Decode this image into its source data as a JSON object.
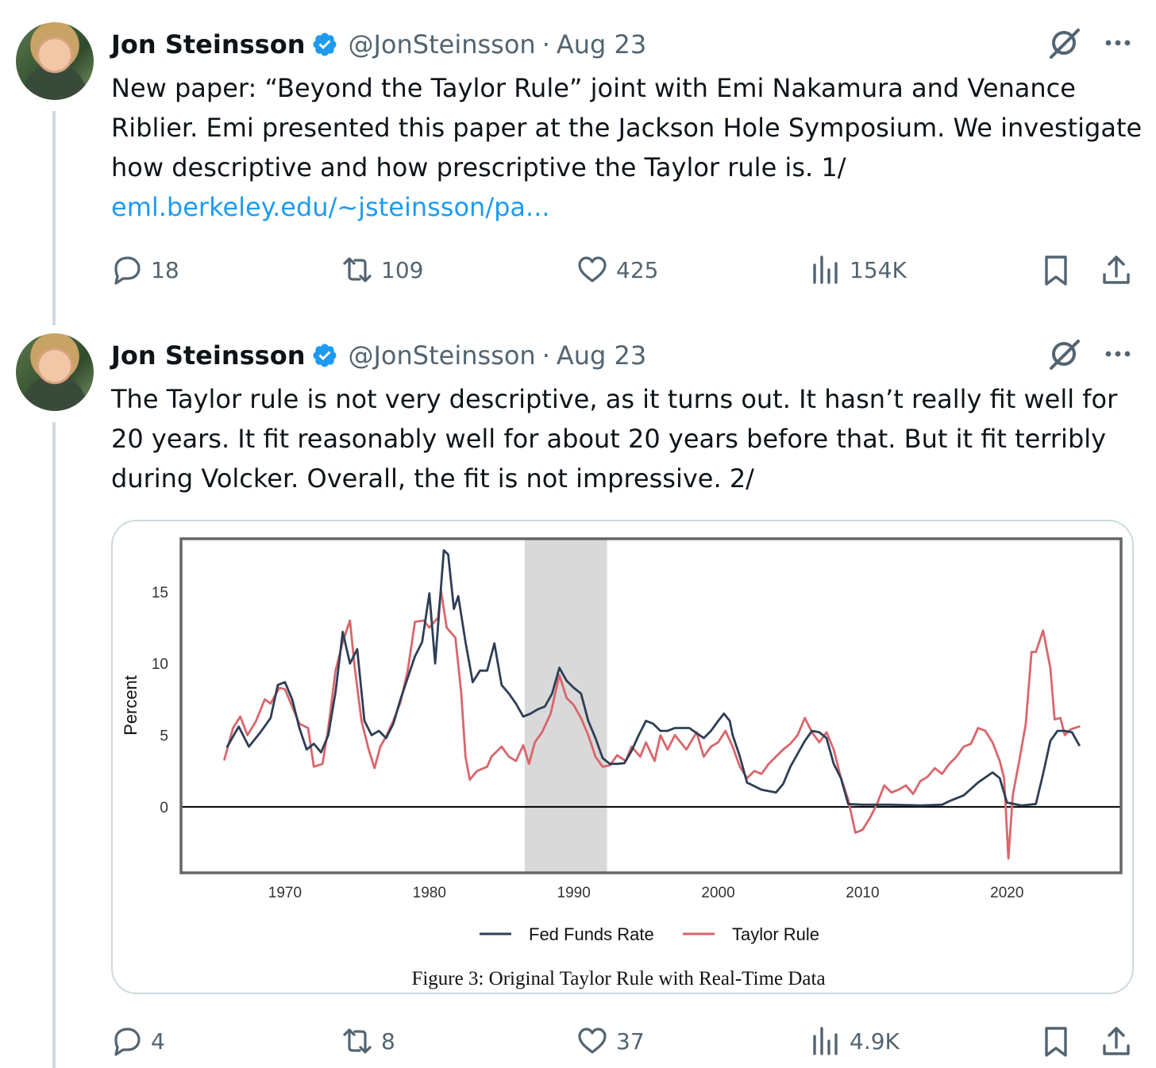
{
  "tweets": [
    {
      "author": "Jon Steinsson",
      "handle": "@JonSteinsson",
      "separator": "·",
      "date": "Aug 23",
      "text": "New paper: “Beyond the Taylor Rule” joint with Emi Nakamura and Venance Riblier. Emi presented this paper at the Jackson Hole Symposium. We investigate how descriptive and how prescriptive the Taylor rule is. 1/",
      "link": "eml.berkeley.edu/~jsteinsson/pa...",
      "replies": "18",
      "reposts": "109",
      "likes": "425",
      "views": "154K"
    },
    {
      "author": "Jon Steinsson",
      "handle": "@JonSteinsson",
      "separator": "·",
      "date": "Aug 23",
      "text": "The Taylor rule is not very descriptive, as it turns out. It hasn’t really fit well for 20 years. It fit reasonably well for about 20 years before that. But it fit terribly during Volcker. Overall, the fit is not impressive. 2/",
      "replies": "4",
      "reposts": "8",
      "likes": "37",
      "views": "4.9K"
    }
  ],
  "colors": {
    "verified": "#1d9bf0",
    "link": "#1d9bf0",
    "muted": "#536471",
    "fed_series": "#2e3e56",
    "taylor_series": "#d9666c",
    "shade": "#d9d9d9"
  },
  "icons": [
    "verified-badge-icon",
    "grok-icon",
    "more-icon",
    "reply-icon",
    "repost-icon",
    "like-icon",
    "views-icon",
    "bookmark-icon",
    "share-icon"
  ],
  "chart_data": {
    "type": "line",
    "title": "",
    "caption": "Figure 3: Original Taylor Rule with Real-Time Data",
    "xlabel": "",
    "ylabel": "Percent",
    "xlim": [
      1962.8,
      2027.9
    ],
    "ylim": [
      -4.6,
      18.7
    ],
    "xticks": [
      "1970",
      "1980",
      "1990",
      "2000",
      "2010",
      "2020"
    ],
    "yticks": [
      "0",
      "5",
      "10",
      "15"
    ],
    "grid": false,
    "zero_line": true,
    "shaded_region": [
      1986.6,
      1992.3
    ],
    "legend_position": "bottom-center",
    "series": [
      {
        "name": "Fed Funds Rate",
        "color": "#2e3e56",
        "points": [
          [
            1966,
            4.2
          ],
          [
            1966.8,
            5.6
          ],
          [
            1967.5,
            4.2
          ],
          [
            1968.3,
            5.2
          ],
          [
            1969,
            6.2
          ],
          [
            1969.5,
            8.5
          ],
          [
            1970,
            8.7
          ],
          [
            1970.5,
            7.5
          ],
          [
            1971,
            5.5
          ],
          [
            1971.5,
            4.0
          ],
          [
            1972,
            4.4
          ],
          [
            1972.5,
            3.8
          ],
          [
            1973,
            5.0
          ],
          [
            1973.5,
            8.0
          ],
          [
            1974,
            12.2
          ],
          [
            1974.5,
            10.0
          ],
          [
            1975,
            11.0
          ],
          [
            1975.5,
            6.0
          ],
          [
            1976,
            5.0
          ],
          [
            1976.5,
            5.3
          ],
          [
            1977,
            4.8
          ],
          [
            1977.5,
            5.8
          ],
          [
            1978,
            7.5
          ],
          [
            1978.5,
            9.0
          ],
          [
            1979,
            10.5
          ],
          [
            1979.5,
            11.5
          ],
          [
            1980,
            14.9
          ],
          [
            1980.4,
            10.0
          ],
          [
            1980.7,
            14.0
          ],
          [
            1981,
            17.9
          ],
          [
            1981.3,
            17.6
          ],
          [
            1981.7,
            13.8
          ],
          [
            1982,
            14.7
          ],
          [
            1982.5,
            11.5
          ],
          [
            1983,
            8.7
          ],
          [
            1983.5,
            9.5
          ],
          [
            1984,
            9.5
          ],
          [
            1984.5,
            11.4
          ],
          [
            1985,
            8.5
          ],
          [
            1985.5,
            7.9
          ],
          [
            1986,
            7.2
          ],
          [
            1986.5,
            6.3
          ],
          [
            1987,
            6.5
          ],
          [
            1987.5,
            6.8
          ],
          [
            1988,
            7.0
          ],
          [
            1988.5,
            7.9
          ],
          [
            1989,
            9.7
          ],
          [
            1989.5,
            8.8
          ],
          [
            1990,
            8.3
          ],
          [
            1990.5,
            7.9
          ],
          [
            1991,
            6.0
          ],
          [
            1991.5,
            4.8
          ],
          [
            1992,
            3.4
          ],
          [
            1992.5,
            3.0
          ],
          [
            1993,
            3.0
          ],
          [
            1993.5,
            3.05
          ],
          [
            1994,
            3.9
          ],
          [
            1994.5,
            5.0
          ],
          [
            1995,
            6.0
          ],
          [
            1995.5,
            5.8
          ],
          [
            1996,
            5.3
          ],
          [
            1996.5,
            5.3
          ],
          [
            1997,
            5.5
          ],
          [
            1998,
            5.5
          ],
          [
            1999,
            4.8
          ],
          [
            1999.5,
            5.3
          ],
          [
            2000,
            6.0
          ],
          [
            2000.4,
            6.5
          ],
          [
            2000.8,
            6.0
          ],
          [
            2001,
            5.0
          ],
          [
            2001.5,
            3.5
          ],
          [
            2002,
            1.7
          ],
          [
            2003,
            1.2
          ],
          [
            2004,
            1.0
          ],
          [
            2004.5,
            1.6
          ],
          [
            2005,
            2.8
          ],
          [
            2005.5,
            3.7
          ],
          [
            2006,
            4.6
          ],
          [
            2006.5,
            5.3
          ],
          [
            2007,
            5.2
          ],
          [
            2007.5,
            4.8
          ],
          [
            2008,
            3.0
          ],
          [
            2008.5,
            2.0
          ],
          [
            2009,
            0.2
          ],
          [
            2010,
            0.15
          ],
          [
            2012,
            0.15
          ],
          [
            2014,
            0.1
          ],
          [
            2015.5,
            0.15
          ],
          [
            2016,
            0.4
          ],
          [
            2017,
            0.8
          ],
          [
            2018,
            1.7
          ],
          [
            2019,
            2.4
          ],
          [
            2019.5,
            2.0
          ],
          [
            2020,
            0.3
          ],
          [
            2021,
            0.1
          ],
          [
            2022,
            0.2
          ],
          [
            2022.5,
            2.3
          ],
          [
            2023,
            4.6
          ],
          [
            2023.5,
            5.3
          ],
          [
            2024,
            5.3
          ],
          [
            2024.5,
            5.2
          ],
          [
            2025,
            4.3
          ]
        ]
      },
      {
        "name": "Taylor Rule",
        "color": "#d9666c",
        "points": [
          [
            1965.8,
            3.3
          ],
          [
            1966.4,
            5.5
          ],
          [
            1966.9,
            6.3
          ],
          [
            1967.4,
            5.0
          ],
          [
            1968,
            6.0
          ],
          [
            1968.6,
            7.5
          ],
          [
            1969,
            7.2
          ],
          [
            1969.6,
            8.3
          ],
          [
            1970,
            8.2
          ],
          [
            1970.5,
            7.0
          ],
          [
            1971,
            5.8
          ],
          [
            1971.6,
            5.5
          ],
          [
            1972,
            2.8
          ],
          [
            1972.6,
            3.0
          ],
          [
            1973,
            5.5
          ],
          [
            1973.5,
            9.5
          ],
          [
            1974,
            11.5
          ],
          [
            1974.5,
            13.0
          ],
          [
            1974.8,
            10.0
          ],
          [
            1975.3,
            6.0
          ],
          [
            1975.8,
            4.0
          ],
          [
            1976.2,
            2.7
          ],
          [
            1976.6,
            4.2
          ],
          [
            1977,
            4.9
          ],
          [
            1977.5,
            6.0
          ],
          [
            1978,
            7.3
          ],
          [
            1978.5,
            9.5
          ],
          [
            1979,
            12.9
          ],
          [
            1979.6,
            13.0
          ],
          [
            1980,
            12.5
          ],
          [
            1980.6,
            13.2
          ],
          [
            1980.8,
            15.1
          ],
          [
            1981.2,
            12.5
          ],
          [
            1981.8,
            11.8
          ],
          [
            1982.2,
            8.0
          ],
          [
            1982.5,
            3.5
          ],
          [
            1982.8,
            1.9
          ],
          [
            1983.3,
            2.5
          ],
          [
            1984,
            2.8
          ],
          [
            1984.3,
            3.5
          ],
          [
            1985,
            4.2
          ],
          [
            1985.5,
            3.5
          ],
          [
            1986,
            3.2
          ],
          [
            1986.5,
            4.3
          ],
          [
            1986.9,
            3.0
          ],
          [
            1987.3,
            4.5
          ],
          [
            1987.8,
            5.2
          ],
          [
            1988.4,
            6.5
          ],
          [
            1989,
            9.2
          ],
          [
            1989.5,
            7.6
          ],
          [
            1990,
            7.1
          ],
          [
            1990.5,
            6.2
          ],
          [
            1991,
            5.0
          ],
          [
            1991.5,
            3.5
          ],
          [
            1992,
            2.8
          ],
          [
            1992.5,
            2.9
          ],
          [
            1993,
            3.6
          ],
          [
            1993.6,
            3.2
          ],
          [
            1994,
            4.2
          ],
          [
            1994.6,
            3.5
          ],
          [
            1995,
            4.5
          ],
          [
            1995.6,
            3.2
          ],
          [
            1996,
            5.0
          ],
          [
            1996.5,
            4.0
          ],
          [
            1997,
            5.0
          ],
          [
            1997.8,
            4.0
          ],
          [
            1998.5,
            5.2
          ],
          [
            1999,
            3.5
          ],
          [
            1999.5,
            4.2
          ],
          [
            2000,
            4.5
          ],
          [
            2000.5,
            5.3
          ],
          [
            2001,
            4.2
          ],
          [
            2001.5,
            2.8
          ],
          [
            2002,
            2.0
          ],
          [
            2002.5,
            2.5
          ],
          [
            2003,
            2.3
          ],
          [
            2003.5,
            3.0
          ],
          [
            2004,
            3.5
          ],
          [
            2004.5,
            4.0
          ],
          [
            2005,
            4.4
          ],
          [
            2005.5,
            5.0
          ],
          [
            2006,
            6.2
          ],
          [
            2006.5,
            5.2
          ],
          [
            2007,
            4.5
          ],
          [
            2007.5,
            5.2
          ],
          [
            2008,
            4.0
          ],
          [
            2008.5,
            2.0
          ],
          [
            2009,
            0.5
          ],
          [
            2009.5,
            -1.8
          ],
          [
            2010,
            -1.6
          ],
          [
            2010.5,
            -0.8
          ],
          [
            2011,
            0.2
          ],
          [
            2011.5,
            1.5
          ],
          [
            2012,
            1.0
          ],
          [
            2012.5,
            1.2
          ],
          [
            2013,
            1.5
          ],
          [
            2013.5,
            0.9
          ],
          [
            2014,
            1.8
          ],
          [
            2014.5,
            2.1
          ],
          [
            2015,
            2.7
          ],
          [
            2015.5,
            2.3
          ],
          [
            2016,
            3.0
          ],
          [
            2016.5,
            3.5
          ],
          [
            2017,
            4.2
          ],
          [
            2017.5,
            4.4
          ],
          [
            2018,
            5.5
          ],
          [
            2018.5,
            5.3
          ],
          [
            2019,
            4.5
          ],
          [
            2019.5,
            3.2
          ],
          [
            2019.8,
            2.0
          ],
          [
            2020.1,
            -3.6
          ],
          [
            2020.4,
            0.8
          ],
          [
            2020.9,
            3.5
          ],
          [
            2021.3,
            5.8
          ],
          [
            2021.7,
            10.8
          ],
          [
            2022,
            10.8
          ],
          [
            2022.5,
            12.3
          ],
          [
            2023,
            9.7
          ],
          [
            2023.3,
            6.1
          ],
          [
            2023.7,
            6.2
          ],
          [
            2024,
            5.0
          ],
          [
            2024.4,
            5.4
          ],
          [
            2025,
            5.6
          ]
        ]
      }
    ]
  }
}
